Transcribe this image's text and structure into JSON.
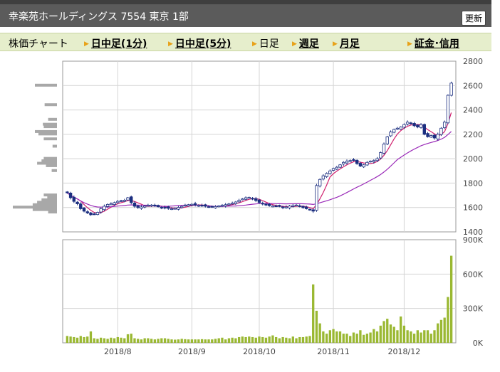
{
  "header": {
    "title": "幸楽苑ホールディングス  7554  東京 1部",
    "refresh_label": "更新"
  },
  "tabs": [
    {
      "label": "株価チャート",
      "arrow": false,
      "link": false
    },
    {
      "label": "日中足(1分)",
      "arrow": true,
      "link": true
    },
    {
      "label": "日中足(5分)",
      "arrow": true,
      "link": true
    },
    {
      "label": "日足",
      "arrow": true,
      "link": false
    },
    {
      "label": "週足",
      "arrow": true,
      "link": true
    },
    {
      "label": "月足",
      "arrow": true,
      "link": true
    },
    {
      "label": "証金･信用",
      "arrow": true,
      "link": true
    }
  ],
  "colors": {
    "up": "#ffffff",
    "down": "#1c2f80",
    "candle_outline": "#1c2f80",
    "ma_short": "#d0206e",
    "ma_long": "#9a2ab8",
    "volume": "#9ab832",
    "profile": "#a8a8a8",
    "grid": "#d4d4d4"
  },
  "chart_data": [
    {
      "type": "candlestick",
      "yaxis_ticks": [
        "2800",
        "2600",
        "2400",
        "2200",
        "2000",
        "1800",
        "1600",
        "1400"
      ],
      "ylim": [
        1400,
        2800
      ],
      "xaxis_ticks": [
        "2018/8",
        "2018/9",
        "2018/10",
        "2018/11",
        "2018/12"
      ],
      "grid": true,
      "close": [
        1720,
        1680,
        1650,
        1630,
        1590,
        1570,
        1555,
        1540,
        1545,
        1560,
        1590,
        1610,
        1625,
        1630,
        1640,
        1650,
        1655,
        1660,
        1680,
        1640,
        1610,
        1600,
        1605,
        1612,
        1618,
        1620,
        1612,
        1606,
        1600,
        1598,
        1593,
        1590,
        1593,
        1601,
        1609,
        1619,
        1623,
        1626,
        1621,
        1617,
        1615,
        1610,
        1606,
        1604,
        1608,
        1613,
        1618,
        1623,
        1629,
        1635,
        1645,
        1659,
        1670,
        1680,
        1683,
        1674,
        1657,
        1641,
        1628,
        1620,
        1615,
        1612,
        1610,
        1608,
        1600,
        1604,
        1612,
        1615,
        1620,
        1610,
        1598,
        1590,
        1580,
        1570,
        1780,
        1830,
        1860,
        1880,
        1900,
        1920,
        1930,
        1950,
        1970,
        1980,
        1985,
        1990,
        1960,
        1940,
        1950,
        1970,
        1980,
        1985,
        2000,
        2050,
        2120,
        2180,
        2220,
        2240,
        2250,
        2260,
        2280,
        2300,
        2290,
        2270,
        2260,
        2280,
        2200,
        2180,
        2190,
        2170,
        2200,
        2250,
        2300,
        2520,
        2620
      ],
      "volume_profile_levels": [
        2600,
        2440,
        2320,
        2280,
        2260,
        2220,
        2200,
        2160,
        2100,
        2000,
        1980,
        1960,
        1940,
        1900,
        1700,
        1680,
        1660,
        1640,
        1620,
        1600,
        1580,
        1560
      ],
      "volume_profile_sizes": [
        0.5,
        0.28,
        0.2,
        0.32,
        0.3,
        0.5,
        0.42,
        0.3,
        0.1,
        0.3,
        0.35,
        0.45,
        0.25,
        0.12,
        0.3,
        0.22,
        0.35,
        0.45,
        0.55,
        1.0,
        0.55,
        0.2
      ]
    },
    {
      "type": "bar",
      "name": "volume",
      "yaxis_ticks": [
        "900K",
        "600K",
        "300K",
        "0K"
      ],
      "ylim": [
        0,
        900000
      ],
      "values": [
        60000,
        55000,
        50000,
        45000,
        60000,
        50000,
        55000,
        100000,
        40000,
        35000,
        45000,
        40000,
        35000,
        45000,
        40000,
        50000,
        45000,
        40000,
        75000,
        80000,
        40000,
        35000,
        30000,
        40000,
        40000,
        35000,
        30000,
        35000,
        40000,
        40000,
        35000,
        30000,
        28000,
        30000,
        35000,
        32000,
        30000,
        30000,
        30000,
        30000,
        32000,
        30000,
        30000,
        30000,
        35000,
        40000,
        45000,
        30000,
        40000,
        45000,
        40000,
        50000,
        55000,
        50000,
        55000,
        50000,
        45000,
        55000,
        50000,
        45000,
        55000,
        65000,
        50000,
        40000,
        50000,
        45000,
        40000,
        55000,
        40000,
        50000,
        50000,
        55000,
        60000,
        510000,
        280000,
        170000,
        100000,
        80000,
        110000,
        120000,
        100000,
        100000,
        80000,
        80000,
        60000,
        90000,
        80000,
        110000,
        70000,
        80000,
        90000,
        120000,
        100000,
        150000,
        190000,
        210000,
        160000,
        140000,
        110000,
        230000,
        150000,
        110000,
        100000,
        80000,
        110000,
        90000,
        110000,
        110000,
        80000,
        110000,
        170000,
        200000,
        220000,
        400000,
        760000
      ]
    }
  ]
}
